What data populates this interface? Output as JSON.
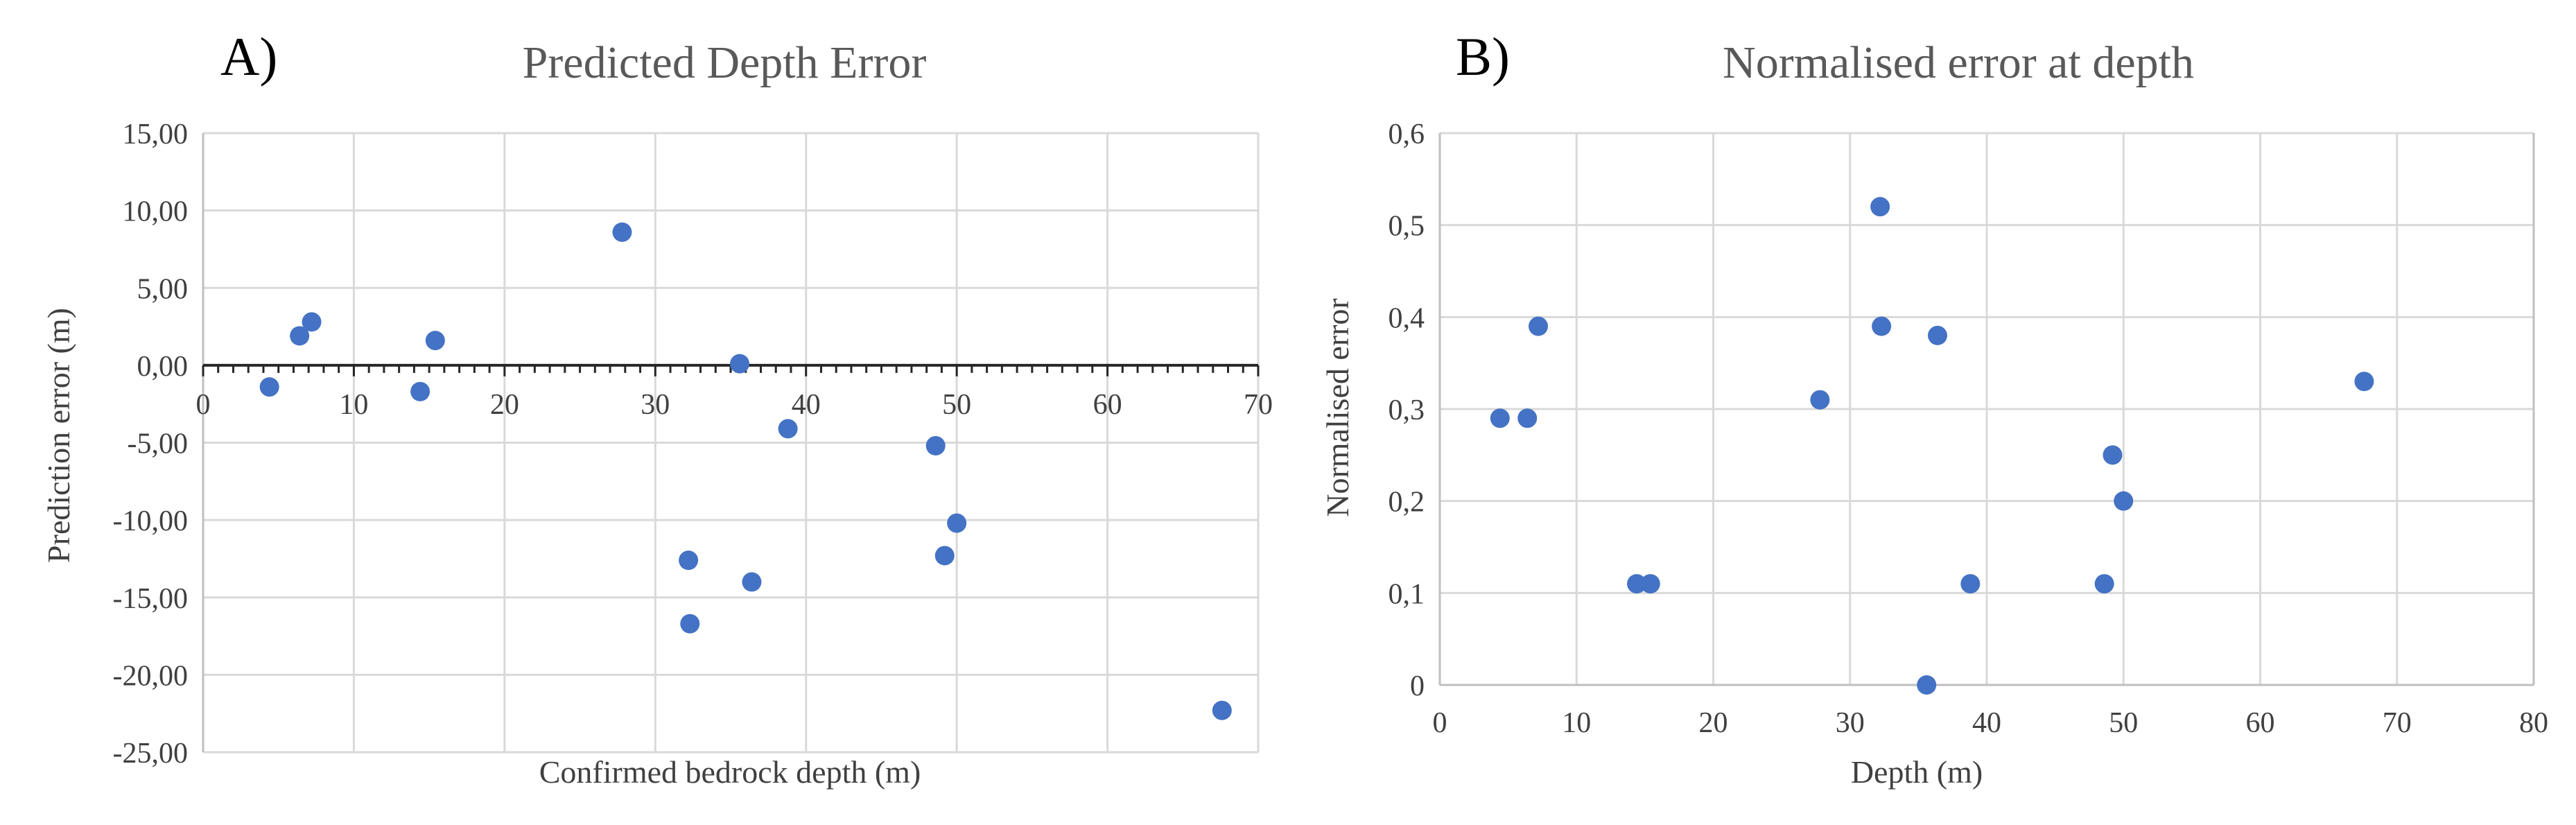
{
  "chart_data": [
    {
      "type": "scatter",
      "panel_label": "A)",
      "title": "Predicted Depth Error",
      "xlabel": "Confirmed bedrock depth (m)",
      "ylabel": "Prediction error (m)",
      "xlim": [
        0,
        70
      ],
      "ylim": [
        -25,
        15
      ],
      "x_ticks": [
        "0",
        "10",
        "20",
        "30",
        "40",
        "50",
        "60",
        "70"
      ],
      "y_ticks": [
        "15,00",
        "10,00",
        "5,00",
        "0,00",
        "-5,00",
        "-10,00",
        "-15,00",
        "-20,00",
        "-25,00"
      ],
      "point_color": "#4472c4",
      "series": [
        {
          "name": "Prediction error",
          "points": [
            {
              "x": 4.4,
              "y": -1.4
            },
            {
              "x": 6.4,
              "y": 1.9
            },
            {
              "x": 7.2,
              "y": 2.8
            },
            {
              "x": 14.4,
              "y": -1.7
            },
            {
              "x": 15.4,
              "y": 1.6
            },
            {
              "x": 27.8,
              "y": 8.6
            },
            {
              "x": 32.2,
              "y": -12.6
            },
            {
              "x": 32.3,
              "y": -16.7
            },
            {
              "x": 35.6,
              "y": 0.1
            },
            {
              "x": 36.4,
              "y": -14.0
            },
            {
              "x": 38.8,
              "y": -4.1
            },
            {
              "x": 48.6,
              "y": -5.2
            },
            {
              "x": 49.2,
              "y": -12.3
            },
            {
              "x": 50.0,
              "y": -10.2
            },
            {
              "x": 67.6,
              "y": -22.3
            }
          ]
        }
      ]
    },
    {
      "type": "scatter",
      "panel_label": "B)",
      "title": "Normalised error at depth",
      "xlabel": "Depth (m)",
      "ylabel": "Normalised error",
      "xlim": [
        0,
        80
      ],
      "ylim": [
        0,
        0.6
      ],
      "x_ticks": [
        "0",
        "10",
        "20",
        "30",
        "40",
        "50",
        "60",
        "70",
        "80"
      ],
      "y_ticks": [
        "0,6",
        "0,5",
        "0,4",
        "0,3",
        "0,2",
        "0,1",
        "0"
      ],
      "point_color": "#4472c4",
      "series": [
        {
          "name": "Normalised error",
          "points": [
            {
              "x": 4.4,
              "y": 0.29
            },
            {
              "x": 6.4,
              "y": 0.29
            },
            {
              "x": 7.2,
              "y": 0.39
            },
            {
              "x": 14.4,
              "y": 0.11
            },
            {
              "x": 15.4,
              "y": 0.11
            },
            {
              "x": 27.8,
              "y": 0.31
            },
            {
              "x": 32.2,
              "y": 0.52
            },
            {
              "x": 32.3,
              "y": 0.39
            },
            {
              "x": 35.6,
              "y": 0.0
            },
            {
              "x": 36.4,
              "y": 0.38
            },
            {
              "x": 38.8,
              "y": 0.11
            },
            {
              "x": 48.6,
              "y": 0.11
            },
            {
              "x": 49.2,
              "y": 0.25
            },
            {
              "x": 50.0,
              "y": 0.2
            },
            {
              "x": 67.6,
              "y": 0.33
            }
          ]
        }
      ]
    }
  ]
}
